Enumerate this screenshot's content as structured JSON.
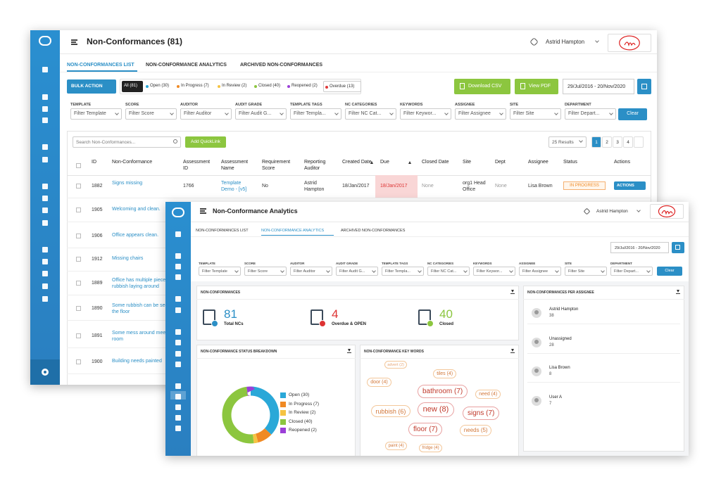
{
  "shared": {
    "user": "Astrid Hampton",
    "tabs": [
      "NON-CONFORMANCES LIST",
      "NON-CONFORMANCE ANALYTICS",
      "ARCHIVED NON-CONFORMANCES"
    ],
    "date_range": "29/Jul/2016 - 20/Nov/2020",
    "filters": [
      {
        "label": "TEMPLATE",
        "placeholder": "Filter Template"
      },
      {
        "label": "SCORE",
        "placeholder": "Filter Score"
      },
      {
        "label": "AUDITOR",
        "placeholder": "Filter Auditor"
      },
      {
        "label": "AUDIT GRADE",
        "placeholder": "Filter Audit G..."
      },
      {
        "label": "TEMPLATE TAGS",
        "placeholder": "Filter Templa..."
      },
      {
        "label": "NC CATEGORIES",
        "placeholder": "Filter NC Cat..."
      },
      {
        "label": "KEYWORDS",
        "placeholder": "Filter Keywor..."
      },
      {
        "label": "ASSIGNEE",
        "placeholder": "Filter Assignee"
      },
      {
        "label": "SITE",
        "placeholder": "Filter Site"
      },
      {
        "label": "DEPARTMENT",
        "placeholder": "Filter Depart..."
      }
    ],
    "clear": "Clear"
  },
  "back": {
    "title": "Non-Conformances (81)",
    "bulk_action": "BULK ACTION",
    "chips": [
      {
        "label": "All (81)",
        "color": null
      },
      {
        "label": "Open (30)",
        "color": "#2aa8d8"
      },
      {
        "label": "In Progress (7)",
        "color": "#f08a24"
      },
      {
        "label": "In Review (2)",
        "color": "#f5c342"
      },
      {
        "label": "Closed (40)",
        "color": "#8cc63f"
      },
      {
        "label": "Reopened (2)",
        "color": "#9b3fd8"
      },
      {
        "label": "Overdue (13)",
        "color": "#e03a3a"
      }
    ],
    "download_csv": "Download CSV",
    "view_pdf": "View PDF",
    "search_placeholder": "Search Non-Conformances...",
    "add_quicklink": "Add QuickLink",
    "results": "25 Results",
    "pages": [
      1,
      2,
      3,
      4
    ],
    "columns": [
      "ID",
      "Non-Conformance",
      "Assessment ID",
      "Assessment Name",
      "Requirement Score",
      "Reporting Auditor",
      "Created Date",
      "Due",
      "Closed Date",
      "Site",
      "Dept",
      "Assignee",
      "Status",
      "Actions"
    ],
    "actions_label": "ACTIONS",
    "rows": [
      [
        1882,
        "Signs missing",
        1766,
        "Template Demo - [v5]",
        "No",
        "Astrid Hampton",
        "18/Jan/2017",
        "18/Jan/2017",
        "None",
        "org1 Head Office",
        "None",
        "Lisa Brown",
        "IN PROGRESS"
      ],
      [
        1905,
        "Welcoming and clean."
      ],
      [
        1906,
        "Office appears clean."
      ],
      [
        1912,
        "Missing chairs"
      ],
      [
        1889,
        "Office has multiple pieces of rubbish laying around"
      ],
      [
        1890,
        "Some rubbish can be seen in the floor"
      ],
      [
        1891,
        "Some mess around meeting room"
      ],
      [
        1900,
        "Building needs painted"
      ]
    ]
  },
  "front": {
    "title": "Non-Conformance Analytics",
    "nc_panel": {
      "title": "NON-CONFORMANCES",
      "total": {
        "value": 81,
        "label": "Total NCs"
      },
      "overdue": {
        "value": 4,
        "label": "Overdue & OPEN"
      },
      "closed": {
        "value": 40,
        "label": "Closed"
      }
    },
    "assignee_panel": {
      "title": "NON-CONFORMANCES PER ASSIGNEE",
      "items": [
        {
          "name": "Astrid Hampton",
          "count": 38
        },
        {
          "name": "Unassigned",
          "count": 28
        },
        {
          "name": "Lisa Brown",
          "count": 8
        },
        {
          "name": "User A",
          "count": 7
        }
      ]
    },
    "status_breakdown": {
      "type": "pie",
      "title": "NON-CONFORMANCE STATUS BREAKDOWN",
      "labels": [
        "Open (30)",
        "In Progress (7)",
        "In Review (2)",
        "Closed (40)",
        "Reopened (2)"
      ],
      "values": [
        30,
        7,
        2,
        40,
        2
      ],
      "colors": [
        "#2aa8d8",
        "#f08a24",
        "#f5c342",
        "#8cc63f",
        "#9b3fd8"
      ]
    },
    "keywords": {
      "title": "NON-CONFORMANCE KEY WORDS",
      "words": [
        "advert (2)",
        "tiles (4)",
        "door (4)",
        "bathroom (7)",
        "need (4)",
        "rubbish (6)",
        "new (8)",
        "signs (7)",
        "floor (7)",
        "needs (5)",
        "paint (4)",
        "fridge (4)"
      ]
    }
  }
}
